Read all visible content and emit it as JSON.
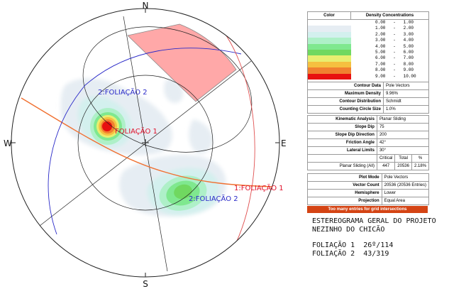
{
  "compass": {
    "n": "N",
    "s": "S",
    "e": "E",
    "w": "W"
  },
  "plot_labels": {
    "f1_pole": "FOLIAÇÃO 1",
    "f2_pole": "2:FOLIAÇÃO 2",
    "f1_plane": "1:FOLIAÇÃO 1",
    "f2_plane": "2:FOLIAÇÃO 2"
  },
  "colors": {
    "f1": "#e0102a",
    "f2": "#2a2ac8",
    "friction_cone": "#ff9a9a",
    "plane_f1_trace": "#f07030",
    "banner": "#d44414"
  },
  "legend": {
    "header_color": "Color",
    "header_density": "Density Concentrations",
    "rows": [
      {
        "from": "0.00",
        "to": "1.00",
        "color": "#ffffff"
      },
      {
        "from": "1.00",
        "to": "2.00",
        "color": "#e6edf3"
      },
      {
        "from": "2.00",
        "to": "3.00",
        "color": "#d3f0ee"
      },
      {
        "from": "3.00",
        "to": "4.00",
        "color": "#aef0c8"
      },
      {
        "from": "4.00",
        "to": "5.00",
        "color": "#7fe88f"
      },
      {
        "from": "5.00",
        "to": "6.00",
        "color": "#70d860"
      },
      {
        "from": "6.00",
        "to": "7.00",
        "color": "#e8ee70"
      },
      {
        "from": "7.00",
        "to": "8.00",
        "color": "#f5c040"
      },
      {
        "from": "8.00",
        "to": "9.00",
        "color": "#f08030"
      },
      {
        "from": "9.00",
        "to": "10.00",
        "color": "#e81010"
      }
    ]
  },
  "contour": {
    "rows": [
      {
        "k": "Contour Data",
        "v": "Pole Vectors"
      },
      {
        "k": "Maximum Density",
        "v": "9.96%"
      },
      {
        "k": "Contour Distribution",
        "v": "Schmidt"
      },
      {
        "k": "Counting Circle Size",
        "v": "1.0%"
      }
    ]
  },
  "kinematic": {
    "rows": [
      {
        "k": "Kinematic Analysis",
        "v": "Planar Sliding"
      },
      {
        "k": "Slope Dip",
        "v": "75"
      },
      {
        "k": "Slope Dip Direction",
        "v": "200"
      },
      {
        "k": "Friction Angle",
        "v": "42°"
      },
      {
        "k": "Lateral Limits",
        "v": "30°"
      }
    ],
    "col_critical": "Critical",
    "col_total": "Total",
    "col_pct": "%",
    "result_label": "Planar Sliding (All)",
    "critical": "447",
    "total": "20536",
    "pct": "2.18%"
  },
  "plot_info": {
    "rows": [
      {
        "k": "Plot Mode",
        "v": "Pole Vectors"
      },
      {
        "k": "Vector Count",
        "v": "20536 (20536 Entries)"
      },
      {
        "k": "Hemisphere",
        "v": "Lower"
      },
      {
        "k": "Projection",
        "v": "Equal Area"
      }
    ],
    "banner": "Too many entries for grid intersections"
  },
  "notes": {
    "line1": "ESTEREOGRAMA GERAL DO PROJETO",
    "line2": "NEZINHO DO CHICÃO",
    "line3": "FOLIAÇÃO 1  26º/114",
    "line4": "FOLIAÇÃO 2  43/319"
  }
}
